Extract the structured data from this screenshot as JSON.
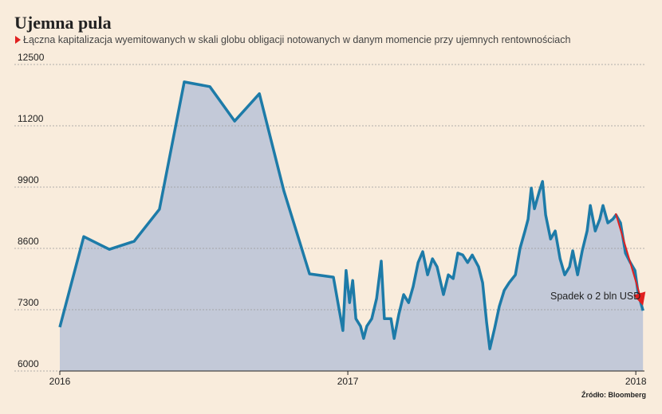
{
  "chart_data": {
    "type": "area",
    "title": "Ujemna pula",
    "subtitle": "Łączna kapitalizacja wyemitowanych w skali globu obligacji notowanych w danym momencie przy ujemnych rentownościach",
    "annotation": "Spadek o 2 bln USD",
    "source": "Źródło: Bloomberg",
    "x": [
      2016,
      2016.083,
      2016.172,
      2016.258,
      2016.346,
      2016.432,
      2016.521,
      2016.607,
      2016.693,
      2016.778,
      2016.867,
      2016.95,
      2016.983,
      2016.994,
      2017.006,
      2017.017,
      2017.028,
      2017.044,
      2017.055,
      2017.066,
      2017.083,
      2017.1,
      2017.116,
      2017.127,
      2017.15,
      2017.161,
      2017.177,
      2017.194,
      2017.211,
      2017.227,
      2017.244,
      2017.26,
      2017.277,
      2017.294,
      2017.31,
      2017.332,
      2017.349,
      2017.366,
      2017.382,
      2017.399,
      2017.416,
      2017.432,
      2017.454,
      2017.468,
      2017.482,
      2017.493,
      2017.51,
      2017.526,
      2017.543,
      2017.56,
      2017.582,
      2017.598,
      2017.615,
      2017.626,
      2017.637,
      2017.648,
      2017.665,
      2017.676,
      2017.687,
      2017.704,
      2017.72,
      2017.737,
      2017.753,
      2017.77,
      2017.781,
      2017.798,
      2017.814,
      2017.831,
      2017.842,
      2017.859,
      2017.875,
      2017.886,
      2017.903,
      2017.92,
      2017.931,
      2017.947,
      2017.964,
      2017.981,
      2017.997,
      2018.008,
      2018.025
    ],
    "values": [
      6930,
      8850,
      8580,
      8750,
      9430,
      12130,
      12030,
      11300,
      11880,
      9820,
      8060,
      7990,
      6860,
      8130,
      7450,
      7920,
      7110,
      6950,
      6690,
      6950,
      7110,
      7540,
      8330,
      7110,
      7110,
      6690,
      7200,
      7620,
      7450,
      7790,
      8300,
      8530,
      8040,
      8380,
      8210,
      7620,
      8040,
      7960,
      8500,
      8460,
      8300,
      8460,
      8210,
      7870,
      7030,
      6470,
      6910,
      7370,
      7710,
      7870,
      8040,
      8600,
      8970,
      9220,
      9880,
      9440,
      9810,
      10020,
      9310,
      8800,
      8970,
      8380,
      8040,
      8210,
      8550,
      8040,
      8550,
      8970,
      9510,
      8970,
      9220,
      9510,
      9140,
      9220,
      9310,
      9140,
      8500,
      8300,
      8130,
      7650,
      7280
    ],
    "color": "#1d7ba8",
    "fill": "#c3c9d8",
    "xlim": [
      2016,
      2018.03
    ],
    "xticks": [
      2016,
      2017,
      2018
    ],
    "ylim": [
      6000,
      12500
    ],
    "yticks": [
      6000,
      7300,
      8600,
      9900,
      11200,
      12500
    ],
    "grid": true
  }
}
